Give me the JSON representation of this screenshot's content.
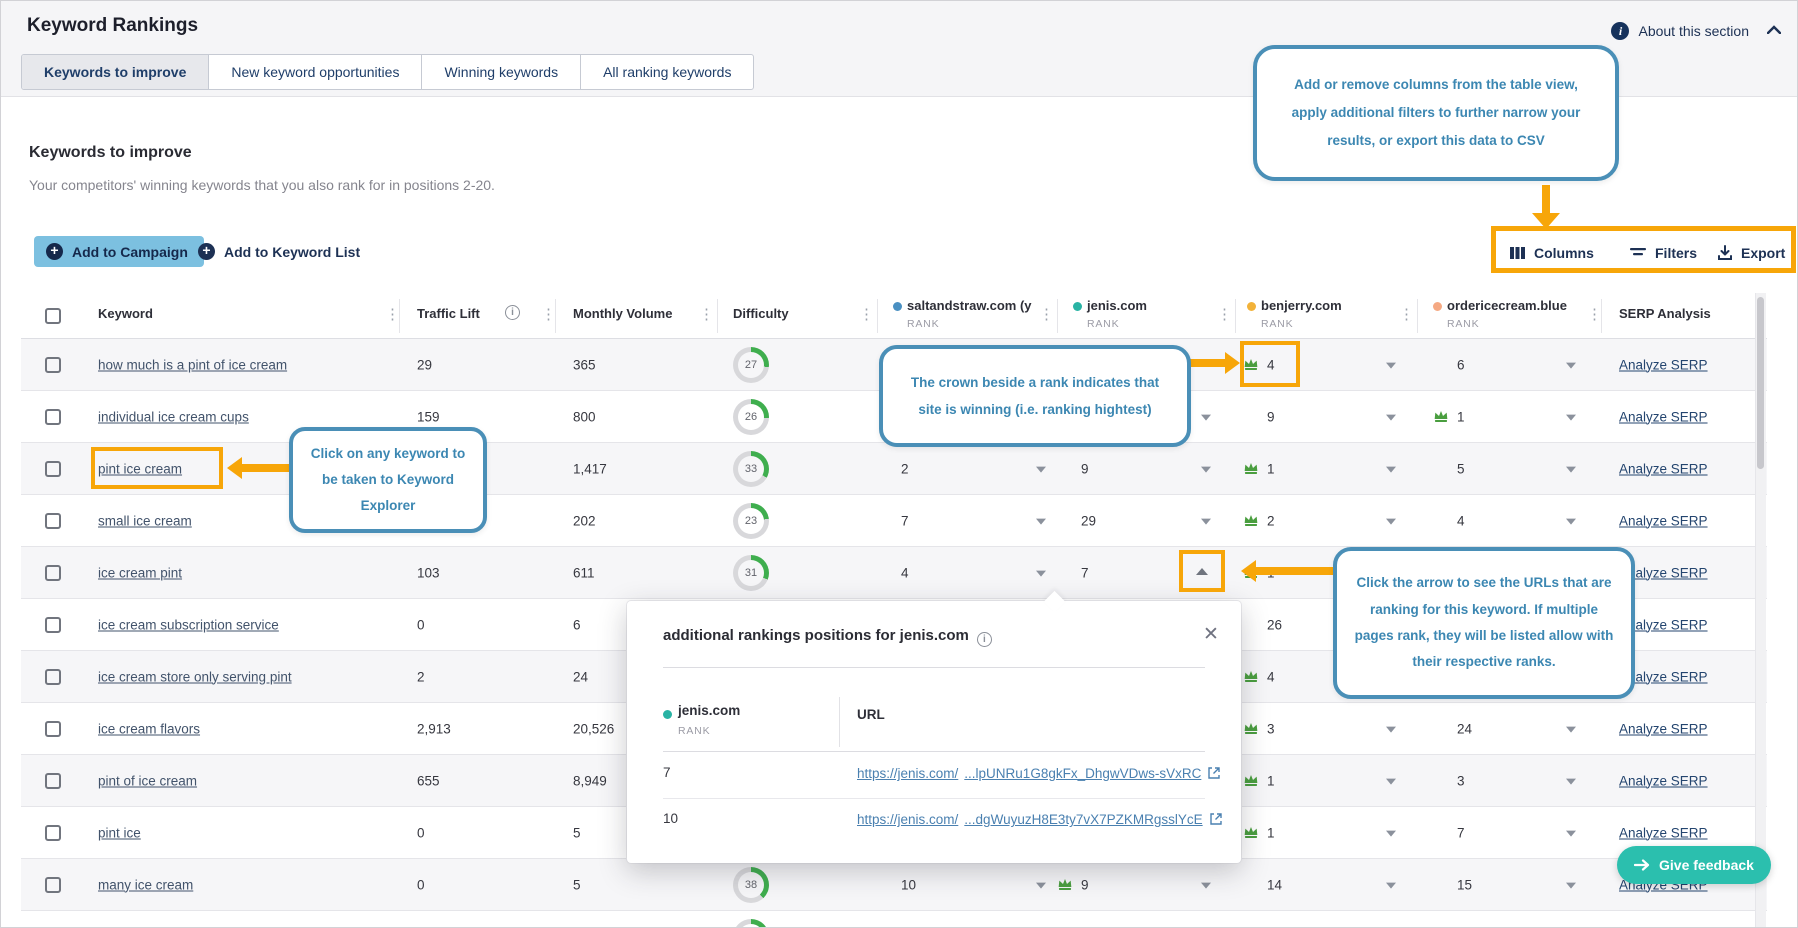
{
  "header": {
    "title": "Keyword Rankings",
    "about_label": "About this section"
  },
  "tabs": [
    {
      "label": "Keywords to improve",
      "active": true
    },
    {
      "label": "New keyword opportunities",
      "active": false
    },
    {
      "label": "Winning keywords",
      "active": false
    },
    {
      "label": "All ranking keywords",
      "active": false
    }
  ],
  "section": {
    "heading": "Keywords to improve",
    "subtitle": "Your competitors' winning keywords that you also rank for in positions 2-20."
  },
  "actions": {
    "add_campaign": "Add to Campaign",
    "add_list": "Add to Keyword List",
    "columns": "Columns",
    "filters": "Filters",
    "export": "Export"
  },
  "callouts": {
    "toolbar": "Add or remove columns from the table view, apply additional filters to further narrow your results, or export this data to CSV",
    "keyword": "Click on any keyword to be taken to Keyword Explorer",
    "crown": "The crown beside a rank indicates that site is winning (i.e. ranking hightest)",
    "urls": "Click the arrow to see the URLs that are ranking for this keyword. If multiple pages rank, they will be listed allow with their respective ranks."
  },
  "colors": {
    "accent_orange": "#f7a609",
    "callout_blue": "#4a8fb7",
    "crown_green": "#4a9e3f",
    "difficulty_green": "#3fae4e",
    "campaign_btn": "#7cc0e0",
    "feedback_teal": "#2bbfae",
    "dot_saltandstraw": "#4a90c2",
    "dot_jenis": "#29b3a4",
    "dot_benjerry": "#f2b239",
    "dot_ordericecream": "#f5a983"
  },
  "table": {
    "columns": [
      {
        "key": "keyword",
        "label": "Keyword"
      },
      {
        "key": "traffic",
        "label": "Traffic Lift",
        "info": true
      },
      {
        "key": "volume",
        "label": "Monthly Volume"
      },
      {
        "key": "difficulty",
        "label": "Difficulty"
      },
      {
        "key": "salt",
        "label": "saltandstraw.com (y",
        "sub": "RANK",
        "dot": "#4a90c2"
      },
      {
        "key": "jenis",
        "label": "jenis.com",
        "sub": "RANK",
        "dot": "#29b3a4"
      },
      {
        "key": "benjerry",
        "label": "benjerry.com",
        "sub": "RANK",
        "dot": "#f2b239"
      },
      {
        "key": "order",
        "label": "ordericecream.blue",
        "sub": "RANK",
        "dot": "#f5a983"
      },
      {
        "key": "serp",
        "label": "SERP Analysis"
      }
    ],
    "serp_link_label": "Analyze SERP",
    "rows": [
      {
        "keyword": "how much is a pint of ice cream",
        "traffic": "29",
        "volume": "365",
        "difficulty": 27,
        "salt": null,
        "jenis": null,
        "benjerry": {
          "v": "4",
          "crown": true,
          "dd": true
        },
        "order": {
          "v": "6",
          "dd": true
        }
      },
      {
        "keyword": "individual ice cream cups",
        "traffic": "159",
        "volume": "800",
        "difficulty": 26,
        "salt": null,
        "jenis": {
          "v": "",
          "dd": true
        },
        "benjerry": {
          "v": "9",
          "dd": true
        },
        "order": {
          "v": "1",
          "crown": true,
          "dd": true
        }
      },
      {
        "keyword": "pint ice cream",
        "traffic": "",
        "volume": "1,417",
        "difficulty": 33,
        "salt": {
          "v": "2",
          "dd": true
        },
        "jenis": {
          "v": "9",
          "dd": true
        },
        "benjerry": {
          "v": "1",
          "crown": true,
          "dd": true
        },
        "order": {
          "v": "5",
          "dd": true
        }
      },
      {
        "keyword": "small ice cream",
        "traffic": "",
        "volume": "202",
        "difficulty": 23,
        "salt": {
          "v": "7",
          "dd": true
        },
        "jenis": {
          "v": "29",
          "dd": true
        },
        "benjerry": {
          "v": "2",
          "crown": true,
          "dd": true
        },
        "order": {
          "v": "4",
          "dd": true
        }
      },
      {
        "keyword": "ice cream pint",
        "traffic": "103",
        "volume": "611",
        "difficulty": 31,
        "salt": {
          "v": "4",
          "dd": true
        },
        "jenis": {
          "v": "7",
          "expanded": true
        },
        "benjerry": {
          "v": "1",
          "crown": true,
          "dd": true
        },
        "order": null
      },
      {
        "keyword": "ice cream subscription service",
        "traffic": "0",
        "volume": "6",
        "difficulty": null,
        "salt": null,
        "jenis": null,
        "benjerry": {
          "v": "26",
          "dd": true
        },
        "order": null
      },
      {
        "keyword": "ice cream store only serving pint",
        "traffic": "2",
        "volume": "24",
        "difficulty": null,
        "salt": null,
        "jenis": null,
        "benjerry": {
          "v": "4",
          "crown": true,
          "dd": true
        },
        "order": null
      },
      {
        "keyword": "ice cream flavors",
        "traffic": "2,913",
        "volume": "20,526",
        "difficulty": null,
        "salt": null,
        "jenis": null,
        "benjerry": {
          "v": "3",
          "crown": true,
          "dd": true
        },
        "order": {
          "v": "24",
          "dd": true
        }
      },
      {
        "keyword": "pint of ice cream",
        "traffic": "655",
        "volume": "8,949",
        "difficulty": null,
        "salt": null,
        "jenis": null,
        "benjerry": {
          "v": "1",
          "crown": true,
          "dd": true
        },
        "order": {
          "v": "3",
          "dd": true
        }
      },
      {
        "keyword": "pint ice",
        "traffic": "0",
        "volume": "5",
        "difficulty": null,
        "salt": null,
        "jenis": null,
        "benjerry": {
          "v": "1",
          "crown": true,
          "dd": true
        },
        "order": {
          "v": "7",
          "dd": true
        }
      },
      {
        "keyword": "many ice cream",
        "traffic": "0",
        "volume": "5",
        "difficulty": 38,
        "salt": {
          "v": "10",
          "dd": true
        },
        "jenis": {
          "v": "9",
          "crown": true,
          "dd": true
        },
        "benjerry": {
          "v": "14",
          "dd": true
        },
        "order": {
          "v": "15",
          "dd": true
        }
      },
      {
        "keyword": "",
        "traffic": "",
        "volume": "",
        "difficulty": 40,
        "difficulty_hide_number": true,
        "salt": null,
        "jenis": null,
        "benjerry": null,
        "order": null,
        "partial": true
      }
    ]
  },
  "popup": {
    "title": "additional rankings positions for jenis.com",
    "site": "jenis.com",
    "site_sub": "RANK",
    "url_header": "URL",
    "rows": [
      {
        "rank": "7",
        "url_base": "https://jenis.com/",
        "url_rest": "...lpUNRu1G8gkFx_DhgwVDws-sVxRC"
      },
      {
        "rank": "10",
        "url_base": "https://jenis.com/",
        "url_rest": "...dgWuyuzH8E3ty7vX7PZKMRgsslYcE"
      }
    ]
  },
  "feedback_label": "Give feedback"
}
